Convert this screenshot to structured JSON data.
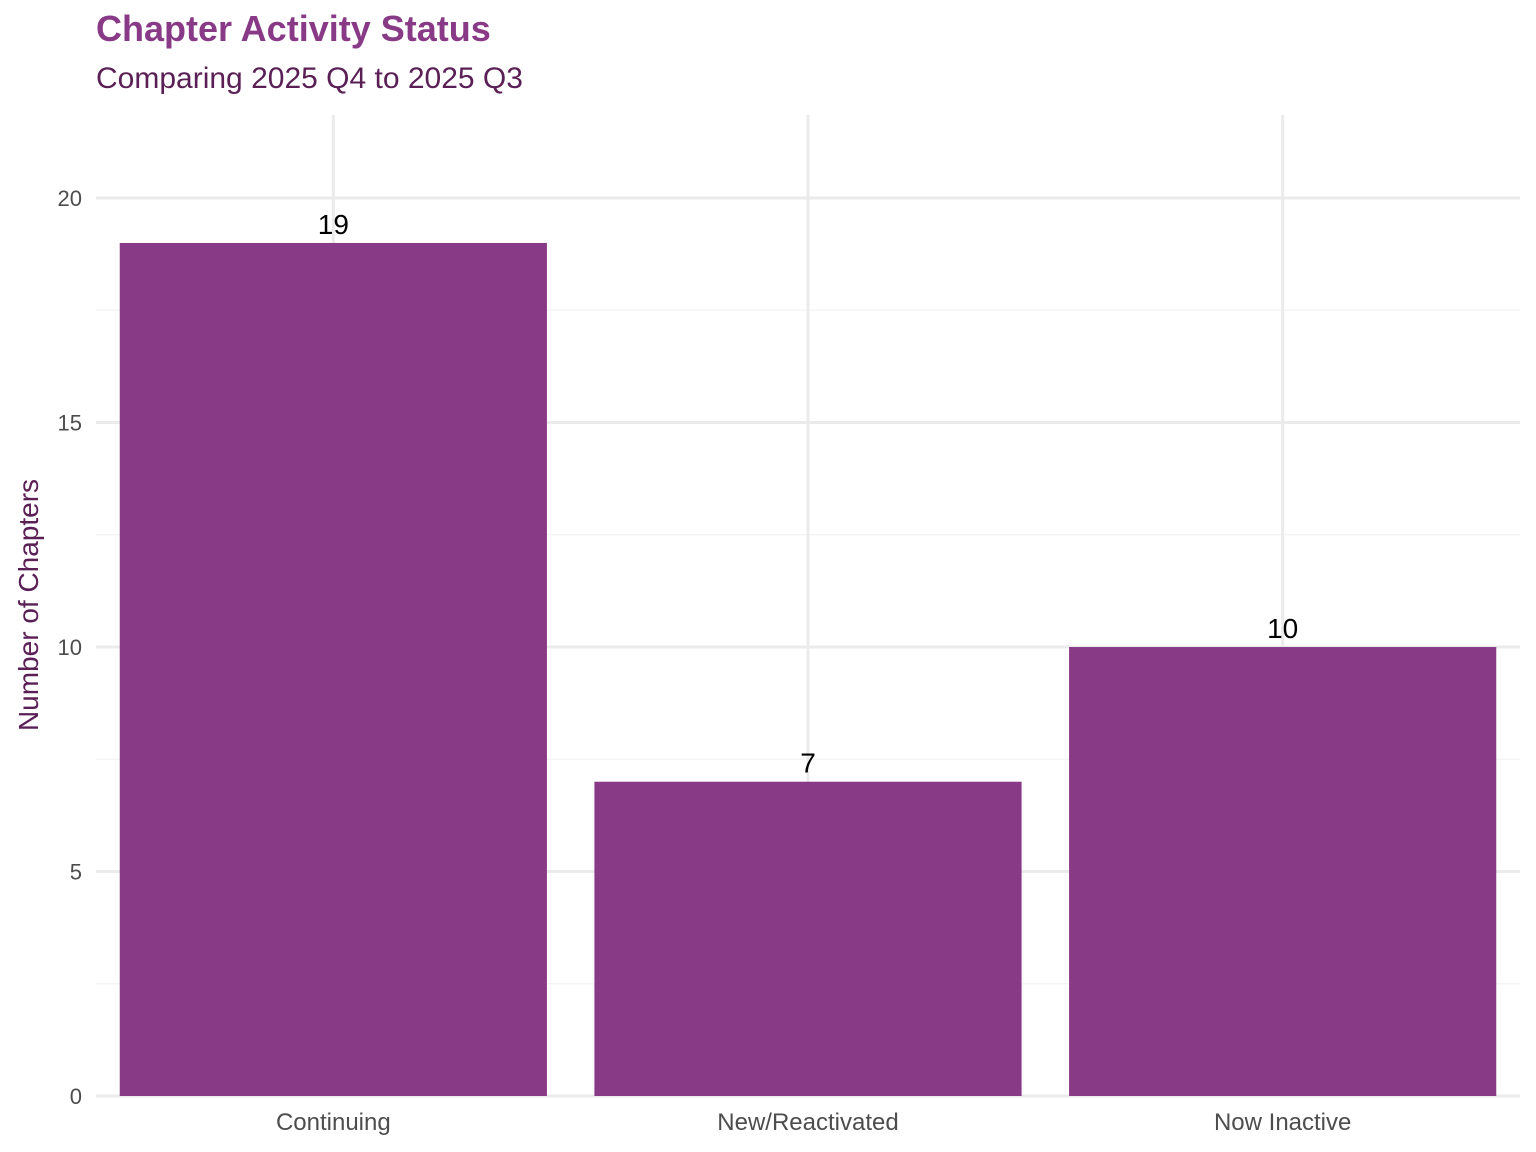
{
  "chart_data": {
    "type": "bar",
    "title": "Chapter Activity Status",
    "subtitle": "Comparing 2025 Q4 to 2025 Q3",
    "xlabel": "",
    "ylabel": "Number of Chapters",
    "categories": [
      "Continuing",
      "New/Reactivated",
      "Now Inactive"
    ],
    "values": [
      19,
      7,
      10
    ],
    "data_labels": [
      "19",
      "7",
      "10"
    ],
    "yticks": [
      0,
      5,
      10,
      15,
      20
    ],
    "ylim": [
      0,
      21.85
    ],
    "grid": true,
    "bar_color": "#883A87"
  }
}
